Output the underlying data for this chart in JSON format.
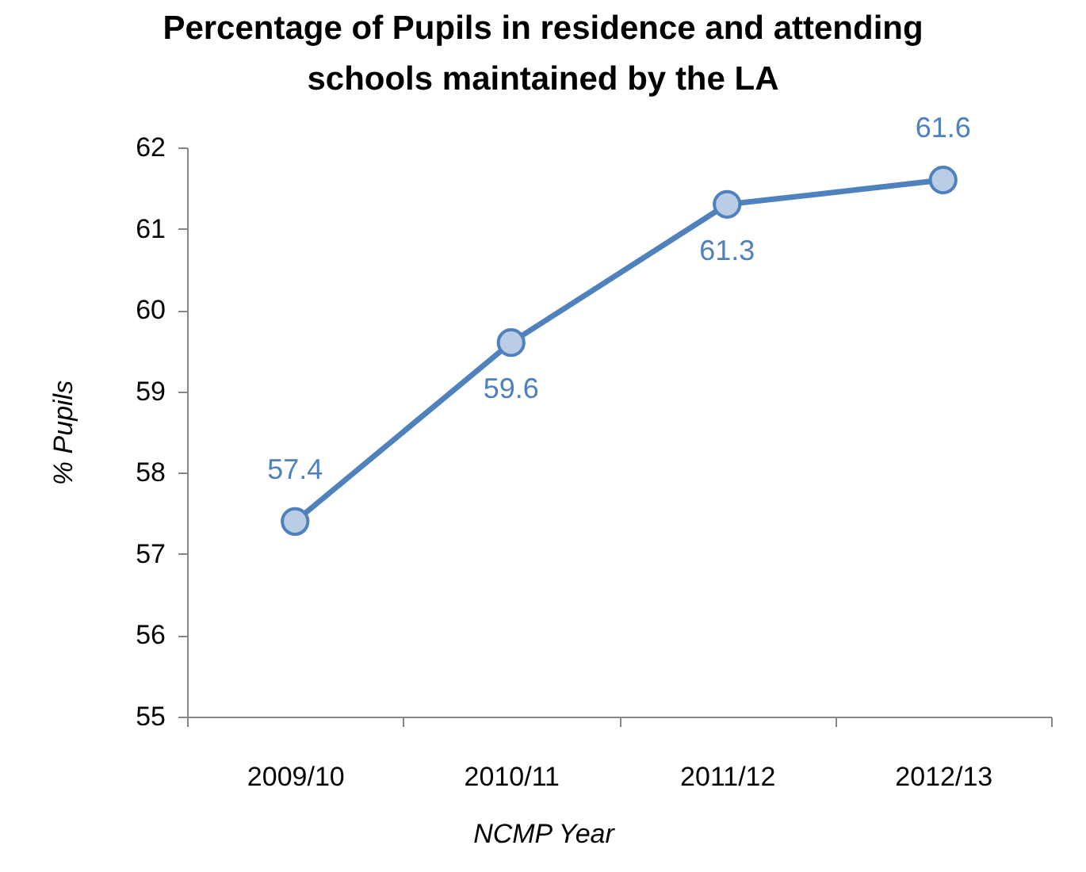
{
  "chart_data": {
    "type": "line",
    "title": "Percentage of Pupils in residence and attending schools maintained by the LA",
    "xlabel": "NCMP Year",
    "ylabel": "% Pupils",
    "categories": [
      "2009/10",
      "2010/11",
      "2011/12",
      "2012/13"
    ],
    "series": [
      {
        "color": "#4f81bd",
        "values": [
          57.4,
          59.6,
          61.3,
          61.6
        ]
      }
    ],
    "ylim": [
      55,
      62
    ],
    "yticks": [
      55,
      56,
      57,
      58,
      59,
      60,
      61,
      62
    ],
    "data_labels": true,
    "grid": false,
    "marker": "circle",
    "line_style": "solid"
  }
}
